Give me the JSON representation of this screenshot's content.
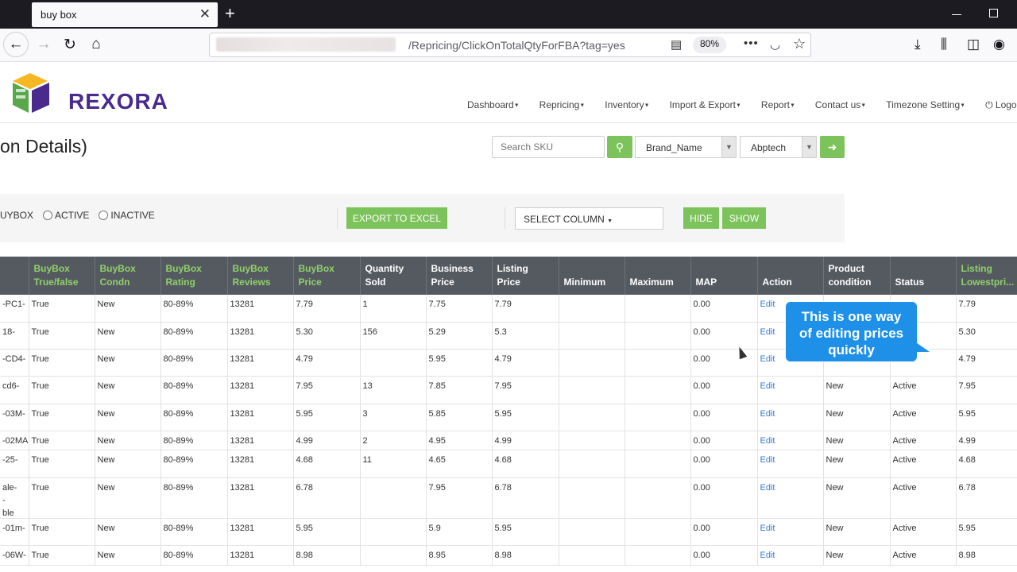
{
  "browser": {
    "tab_title": "buy box",
    "url_path": "/Repricing/ClickOnTotalQtyForFBA?tag=yes",
    "zoom": "80%"
  },
  "header": {
    "logo_text": "REXORA",
    "menu": [
      "Dashboard",
      "Repricing",
      "Inventory",
      "Import & Export",
      "Report",
      "Contact us",
      "Timezone Setting",
      "Logo"
    ]
  },
  "toolbar": {
    "page_title": "on Details)",
    "search_placeholder": "Search SKU",
    "brand_select": "Brand_Name",
    "value_select": "Abptech"
  },
  "filters": {
    "radio_buybox": "UYBOX",
    "radio_active": "ACTIVE",
    "radio_inactive": "INACTIVE",
    "export_label": "EXPORT TO EXCEL",
    "select_column": "SELECT COLUMN",
    "hide_label": "HIDE",
    "show_label": "SHOW"
  },
  "table": {
    "headers": [
      "",
      "BuyBox True/false",
      "BuyBox Condn",
      "BuyBox Rating",
      "BuyBox Reviews",
      "BuyBox Price",
      "Quantity Sold",
      "Business Price",
      "Listing Price",
      "Minimum",
      "Maximum",
      "MAP",
      "Action",
      "Product condition",
      "Status",
      "Listing Lowestpri..."
    ],
    "rows": [
      [
        "-PC1-",
        "True",
        "New",
        "80-89%",
        "13281",
        "7.79",
        "1",
        "7.75",
        "7.79",
        "",
        "",
        "0.00",
        "Edit",
        "",
        "",
        "7.79"
      ],
      [
        "18-",
        "True",
        "New",
        "80-89%",
        "13281",
        "5.30",
        "156",
        "5.29",
        "5.3",
        "",
        "",
        "0.00",
        "Edit",
        "",
        "",
        "5.30"
      ],
      [
        "-CD4-",
        "True",
        "New",
        "80-89%",
        "13281",
        "4.79",
        "",
        "5.95",
        "4.79",
        "",
        "",
        "0.00",
        "Edit",
        "",
        "",
        "4.79"
      ],
      [
        "cd6-",
        "True",
        "New",
        "80-89%",
        "13281",
        "7.95",
        "13",
        "7.85",
        "7.95",
        "",
        "",
        "0.00",
        "Edit",
        "New",
        "Active",
        "7.95"
      ],
      [
        "-03M-",
        "True",
        "New",
        "80-89%",
        "13281",
        "5.95",
        "3",
        "5.85",
        "5.95",
        "",
        "",
        "0.00",
        "Edit",
        "New",
        "Active",
        "5.95"
      ],
      [
        "-02MA",
        "True",
        "New",
        "80-89%",
        "13281",
        "4.99",
        "2",
        "4.95",
        "4.99",
        "",
        "",
        "0.00",
        "Edit",
        "New",
        "Active",
        "4.99"
      ],
      [
        "-25-",
        "True",
        "New",
        "80-89%",
        "13281",
        "4.68",
        "11",
        "4.65",
        "4.68",
        "",
        "",
        "0.00",
        "Edit",
        "New",
        "Active",
        "4.68"
      ],
      [
        "ale-",
        "True",
        "New",
        "80-89%",
        "13281",
        "6.78",
        "",
        "7.95",
        "6.78",
        "",
        "",
        "0.00",
        "Edit",
        "New",
        "Active",
        "6.78"
      ],
      [
        "-01m-",
        "True",
        "New",
        "80-89%",
        "13281",
        "5.95",
        "",
        "5.9",
        "5.95",
        "",
        "",
        "0.00",
        "Edit",
        "New",
        "Active",
        "5.95"
      ],
      [
        "-06W-",
        "True",
        "New",
        "80-89%",
        "13281",
        "8.98",
        "",
        "8.95",
        "8.98",
        "",
        "",
        "0.00",
        "Edit",
        "New",
        "Active",
        "8.98"
      ]
    ],
    "row8_extra": [
      "-",
      "ble"
    ]
  },
  "tooltip": {
    "line1": "This is one way",
    "line2": "of editing prices",
    "line3": "quickly"
  }
}
